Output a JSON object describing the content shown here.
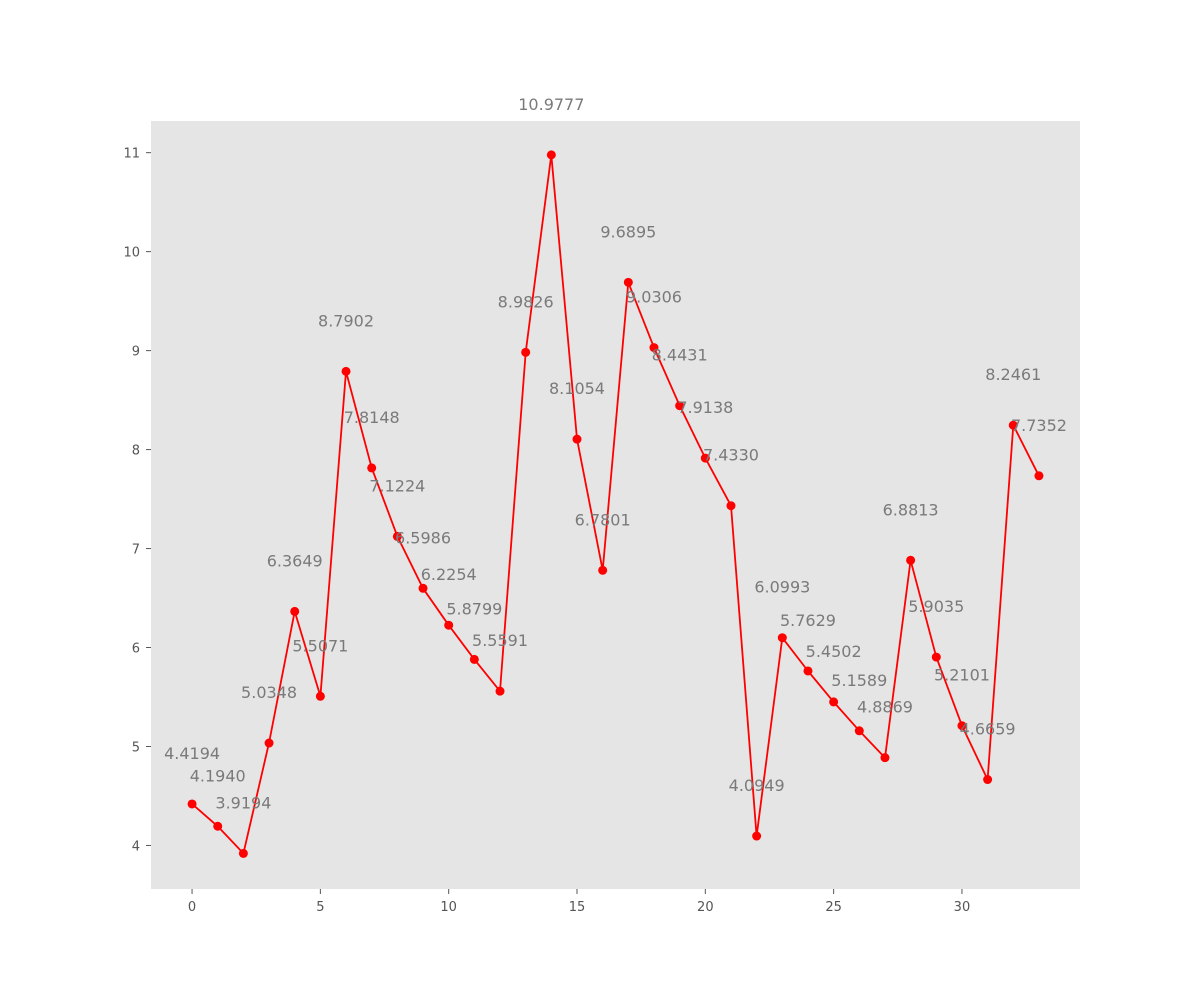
{
  "chart_data": {
    "type": "line",
    "title": "",
    "xlabel": "",
    "ylabel": "",
    "xlim": [
      -1.6,
      34.6
    ],
    "ylim": [
      3.56,
      11.32
    ],
    "x_ticks": [
      0,
      5,
      10,
      15,
      20,
      25,
      30
    ],
    "y_ticks": [
      4,
      5,
      6,
      7,
      8,
      9,
      10,
      11
    ],
    "grid": false,
    "legend": "none",
    "background_color": "#e5e5e5",
    "series": [
      {
        "color": "#ff0000",
        "marker": "circle",
        "x": [
          0,
          1,
          2,
          3,
          4,
          5,
          6,
          7,
          8,
          9,
          10,
          11,
          12,
          13,
          14,
          15,
          16,
          17,
          18,
          19,
          20,
          21,
          22,
          23,
          24,
          25,
          26,
          27,
          28,
          29,
          30,
          31,
          32,
          33
        ],
        "values": [
          4.4194,
          4.194,
          3.9194,
          5.0348,
          6.3649,
          5.5071,
          8.7902,
          7.8148,
          7.1224,
          6.5986,
          6.2254,
          5.8799,
          5.5591,
          8.9826,
          10.9777,
          8.1054,
          6.7801,
          9.6895,
          9.0306,
          8.4431,
          7.9138,
          7.433,
          4.0949,
          6.0993,
          5.7629,
          5.4502,
          5.1589,
          4.8869,
          6.8813,
          5.9035,
          5.2101,
          4.6659,
          8.2461,
          7.7352
        ],
        "labels": [
          "4.4194",
          "4.1940",
          "3.9194",
          "5.0348",
          "6.3649",
          "5.5071",
          "8.7902",
          "7.8148",
          "7.1224",
          "6.5986",
          "6.2254",
          "5.8799",
          "5.5591",
          "8.9826",
          "10.9777",
          "8.1054",
          "6.7801",
          "9.6895",
          "9.0306",
          "8.4431",
          "7.9138",
          "7.4330",
          "4.0949",
          "6.0993",
          "5.7629",
          "5.4502",
          "5.1589",
          "4.8869",
          "6.8813",
          "5.9035",
          "5.2101",
          "4.6659",
          "8.2461",
          "7.7352"
        ]
      }
    ]
  }
}
